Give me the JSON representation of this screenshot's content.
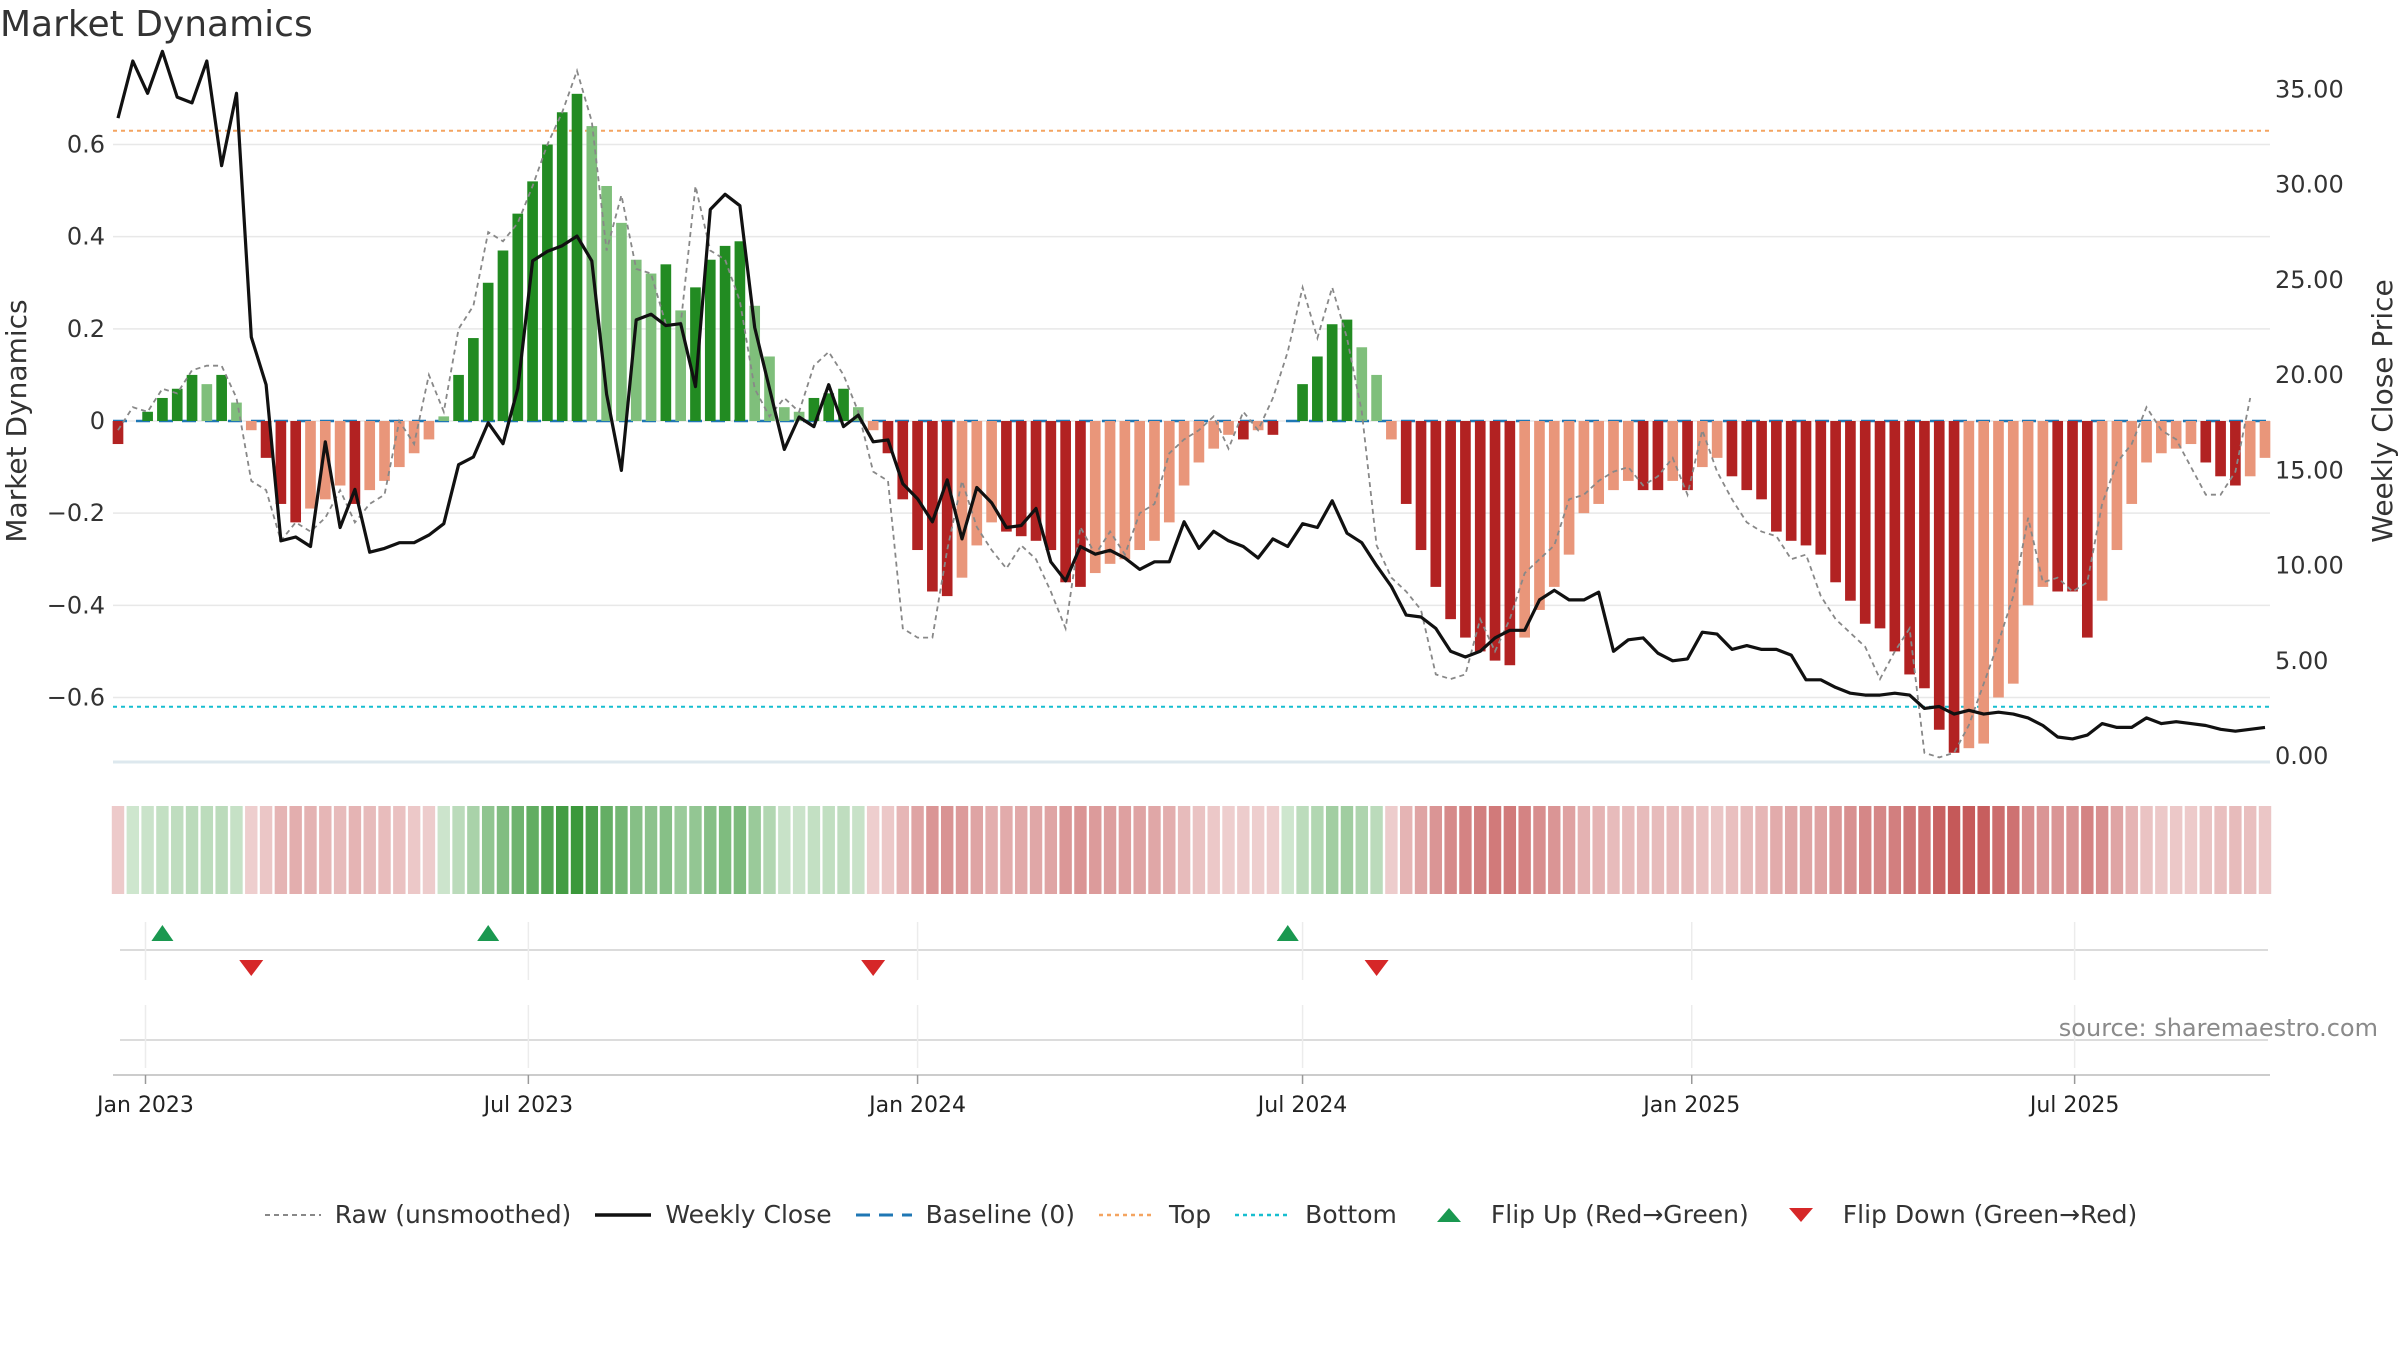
{
  "title": "Market Dynamics",
  "source_text": "source: sharemaestro.com",
  "legend": [
    {
      "label": "Raw (unsmoothed)",
      "kind": "dash-gray"
    },
    {
      "label": "Weekly Close",
      "kind": "solid-black"
    },
    {
      "label": "Baseline (0)",
      "kind": "dash-blue"
    },
    {
      "label": "Top",
      "kind": "dot-orange"
    },
    {
      "label": "Bottom",
      "kind": "dot-cyan"
    },
    {
      "label": "Flip Up (Red→Green)",
      "kind": "tri-up"
    },
    {
      "label": "Flip Down (Green→Red)",
      "kind": "tri-down"
    }
  ],
  "colors": {
    "green_strong": "#228b22",
    "green_light": "#7fbf7b",
    "red_strong": "#b22222",
    "red_light": "#e9967a",
    "raw": "#888888",
    "close": "#111111",
    "baseline": "#1f77b4",
    "top": "#f4a460",
    "bottom": "#17becf",
    "flip_up": "#1a9850",
    "flip_down": "#d62728"
  },
  "chart_data": {
    "type": "bar",
    "ylabel_left": "Market Dynamics",
    "ylabel_right": "Weekly Close Price",
    "ylim_left": [
      -0.74,
      0.74
    ],
    "ylim_right": [
      0,
      35.5
    ],
    "yticks_left": [
      0.6,
      0.4,
      0.2,
      0,
      -0.2,
      -0.4,
      -0.6
    ],
    "yticks_left_labels": [
      "0.6",
      "0.4",
      "0.2",
      "0",
      "−0.2",
      "−0.4",
      "−0.6"
    ],
    "yticks_right": [
      35,
      30,
      25,
      20,
      15,
      10,
      5,
      0
    ],
    "yticks_right_labels": [
      "35.00",
      "30.00",
      "25.00",
      "20.00",
      "15.00",
      "10.00",
      "5.00",
      "0.00"
    ],
    "xticks": [
      "2023-01-01",
      "2023-07-01",
      "2024-01-01",
      "2024-07-01",
      "2025-01-01",
      "2025-07-01"
    ],
    "xtick_labels": [
      "Jan 2023",
      "Jul 2023",
      "Jan 2024",
      "Jul 2024",
      "Jan 2025",
      "Jul 2025"
    ],
    "start_week": "2022-12-19",
    "top_level": 0.63,
    "bottom_level": -0.62,
    "baseline": 0,
    "flip_up_dates": [
      "2023-01-09",
      "2023-06-12",
      "2024-06-24"
    ],
    "flip_down_dates": [
      "2023-02-20",
      "2023-12-11",
      "2024-08-05"
    ],
    "bars": [
      -0.05,
      0,
      0.02,
      0.05,
      0.07,
      0.1,
      0.08,
      0.1,
      0.04,
      -0.02,
      -0.08,
      -0.18,
      -0.22,
      -0.19,
      -0.17,
      -0.14,
      -0.18,
      -0.15,
      -0.13,
      -0.1,
      -0.07,
      -0.04,
      0.01,
      0.1,
      0.18,
      0.3,
      0.37,
      0.45,
      0.52,
      0.6,
      0.67,
      0.71,
      0.64,
      0.51,
      0.43,
      0.35,
      0.32,
      0.34,
      0.24,
      0.29,
      0.35,
      0.38,
      0.39,
      0.25,
      0.14,
      0.03,
      0.02,
      0.05,
      0.06,
      0.07,
      0.03,
      -0.02,
      -0.07,
      -0.17,
      -0.28,
      -0.37,
      -0.38,
      -0.34,
      -0.27,
      -0.22,
      -0.24,
      -0.25,
      -0.26,
      -0.28,
      -0.35,
      -0.36,
      -0.33,
      -0.31,
      -0.3,
      -0.28,
      -0.26,
      -0.22,
      -0.14,
      -0.09,
      -0.06,
      -0.03,
      -0.04,
      -0.02,
      -0.03,
      0,
      0.08,
      0.14,
      0.21,
      0.22,
      0.16,
      0.1,
      -0.04,
      -0.18,
      -0.28,
      -0.36,
      -0.43,
      -0.47,
      -0.5,
      -0.52,
      -0.53,
      -0.47,
      -0.41,
      -0.36,
      -0.29,
      -0.2,
      -0.18,
      -0.15,
      -0.13,
      -0.15,
      -0.15,
      -0.13,
      -0.15,
      -0.1,
      -0.08,
      -0.12,
      -0.15,
      -0.17,
      -0.24,
      -0.26,
      -0.27,
      -0.29,
      -0.35,
      -0.39,
      -0.44,
      -0.45,
      -0.5,
      -0.55,
      -0.58,
      -0.67,
      -0.72,
      -0.71,
      -0.7,
      -0.6,
      -0.57,
      -0.4,
      -0.36,
      -0.37,
      -0.37,
      -0.47,
      -0.39,
      -0.28,
      -0.18,
      -0.09,
      -0.07,
      -0.06,
      -0.05,
      -0.09,
      -0.12,
      -0.14,
      -0.12,
      -0.08
    ],
    "raw": [
      -0.02,
      0.03,
      0.02,
      0.07,
      0.06,
      0.11,
      0.12,
      0.12,
      0.05,
      -0.13,
      -0.15,
      -0.26,
      -0.22,
      -0.24,
      -0.21,
      -0.15,
      -0.22,
      -0.18,
      -0.16,
      0,
      -0.05,
      0.1,
      0.02,
      0.2,
      0.25,
      0.41,
      0.39,
      0.43,
      0.51,
      0.6,
      0.67,
      0.76,
      0.65,
      0.37,
      0.49,
      0.33,
      0.32,
      0.21,
      0.21,
      0.51,
      0.37,
      0.35,
      0.26,
      0.07,
      0.01,
      0.05,
      0.02,
      0.12,
      0.15,
      0.1,
      0.02,
      -0.11,
      -0.13,
      -0.45,
      -0.47,
      -0.47,
      -0.28,
      -0.13,
      -0.23,
      -0.28,
      -0.32,
      -0.27,
      -0.3,
      -0.37,
      -0.45,
      -0.23,
      -0.29,
      -0.24,
      -0.29,
      -0.2,
      -0.18,
      -0.07,
      -0.04,
      -0.02,
      0.01,
      -0.06,
      0.02,
      -0.02,
      0.05,
      0.15,
      0.29,
      0.18,
      0.29,
      0.18,
      0.02,
      -0.27,
      -0.34,
      -0.37,
      -0.41,
      -0.55,
      -0.56,
      -0.55,
      -0.43,
      -0.5,
      -0.43,
      -0.33,
      -0.3,
      -0.27,
      -0.17,
      -0.16,
      -0.13,
      -0.11,
      -0.1,
      -0.14,
      -0.12,
      -0.08,
      -0.16,
      -0.02,
      -0.11,
      -0.17,
      -0.22,
      -0.24,
      -0.25,
      -0.3,
      -0.29,
      -0.38,
      -0.43,
      -0.46,
      -0.49,
      -0.56,
      -0.5,
      -0.45,
      -0.72,
      -0.73,
      -0.72,
      -0.66,
      -0.57,
      -0.48,
      -0.38,
      -0.21,
      -0.35,
      -0.34,
      -0.37,
      -0.35,
      -0.18,
      -0.09,
      -0.05,
      0.03,
      -0.02,
      -0.04,
      -0.1,
      -0.16,
      -0.16,
      -0.11,
      0.05
    ],
    "close": [
      33.5,
      36.5,
      34.8,
      37.0,
      34.6,
      34.3,
      36.5,
      31.0,
      34.8,
      22.0,
      19.5,
      11.3,
      11.5,
      11.0,
      16.5,
      12.0,
      14.0,
      10.7,
      10.9,
      11.2,
      11.2,
      11.6,
      12.2,
      15.3,
      15.7,
      17.5,
      16.4,
      19.3,
      26.0,
      26.5,
      26.8,
      27.3,
      26.0,
      19.0,
      15.0,
      22.9,
      23.2,
      22.6,
      22.7,
      19.4,
      28.7,
      29.5,
      28.9,
      22.5,
      19.3,
      16.1,
      17.8,
      17.3,
      19.5,
      17.3,
      17.9,
      16.5,
      16.6,
      14.3,
      13.5,
      12.3,
      14.5,
      11.4,
      14.1,
      13.3,
      12.0,
      12.1,
      13.0,
      10.2,
      9.2,
      11.0,
      10.6,
      10.8,
      10.4,
      9.8,
      10.2,
      10.2,
      12.3,
      10.9,
      11.8,
      11.3,
      11.0,
      10.4,
      11.4,
      11.0,
      12.2,
      12.0,
      13.4,
      11.7,
      11.2,
      10.0,
      8.9,
      7.4,
      7.3,
      6.7,
      5.5,
      5.2,
      5.5,
      6.2,
      6.6,
      6.6,
      8.2,
      8.7,
      8.2,
      8.2,
      8.6,
      5.5,
      6.1,
      6.2,
      5.4,
      5.0,
      5.1,
      6.5,
      6.4,
      5.6,
      5.8,
      5.6,
      5.6,
      5.3,
      4.0,
      4.0,
      3.6,
      3.3,
      3.2,
      3.2,
      3.3,
      3.2,
      2.5,
      2.6,
      2.2,
      2.4,
      2.2,
      2.3,
      2.2,
      2.0,
      1.6,
      1.0,
      0.9,
      1.1,
      1.7,
      1.5,
      1.5,
      2.0,
      1.7,
      1.8,
      1.7,
      1.6,
      1.4,
      1.3,
      1.4,
      1.5
    ],
    "heat_levels": [
      -2,
      -2,
      -1,
      -1,
      -1,
      -1,
      -1,
      -1,
      -1,
      -2,
      -2,
      -2,
      -2,
      -2,
      -2,
      -2,
      -2,
      -2,
      -2,
      -2,
      -2,
      -2,
      -2,
      -2,
      -1,
      -1,
      -1,
      -1,
      -1,
      -1,
      -1,
      -1,
      -1,
      -1,
      -1,
      -1,
      -1,
      -1,
      -1,
      -1,
      -1,
      -1,
      -1,
      -1,
      -1,
      -1,
      -1,
      -1,
      -1,
      -1,
      -1,
      -1,
      -1,
      -1,
      -1,
      -1,
      -1,
      -1,
      -1,
      -1,
      -1,
      -1,
      -1,
      -1,
      -1,
      -1,
      -1,
      -1,
      -1,
      -1,
      -1,
      -1,
      -1,
      -1,
      -1,
      -1,
      -1,
      -1,
      -1,
      -1,
      -1,
      -1,
      -1,
      -1,
      -1,
      -1,
      -1,
      -1,
      -1,
      -1,
      -1,
      -1,
      -1,
      -1,
      -1,
      -1,
      -1,
      -1,
      -1,
      -1,
      -1,
      -1,
      -1,
      -1,
      -1,
      -1,
      -1,
      -1,
      -1,
      -1,
      -1,
      -1,
      -1,
      -1,
      -1,
      -1,
      -1,
      -1,
      -1,
      -1,
      -1,
      -1,
      -1,
      -1,
      -1,
      -1,
      -1,
      -1,
      -1,
      -1,
      -1,
      -1,
      -1,
      -1,
      -1,
      -1,
      -1,
      -1,
      -1,
      -1,
      -1,
      -1,
      -1,
      -1,
      -1,
      -1,
      -1,
      -1
    ]
  }
}
